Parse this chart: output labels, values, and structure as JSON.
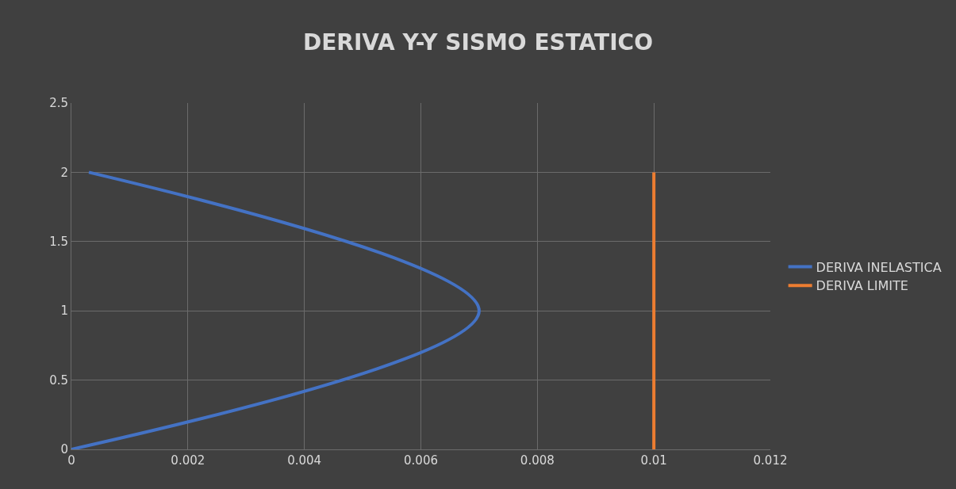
{
  "chart_data": {
    "type": "line",
    "title": "DERIVA Y-Y SISMO ESTATICO",
    "series": [
      {
        "name": "DERIVA INELASTICA",
        "color": "#4472c4",
        "x": [
          0,
          0.007,
          0.0003
        ],
        "values": [
          0,
          1,
          2
        ]
      },
      {
        "name": "DERIVA LIMITE",
        "color": "#ed7d31",
        "x": [
          0.01,
          0.01
        ],
        "values": [
          0,
          2
        ]
      }
    ],
    "xlim": [
      0,
      0.012
    ],
    "xticks": [
      0,
      0.002,
      0.004,
      0.006,
      0.008,
      0.01,
      0.012
    ],
    "ylim": [
      0,
      2.5
    ],
    "yticks": [
      0,
      0.5,
      1,
      1.5,
      2,
      2.5
    ],
    "grid": true,
    "legend": "right",
    "marker": "none",
    "line_style": "solid"
  }
}
